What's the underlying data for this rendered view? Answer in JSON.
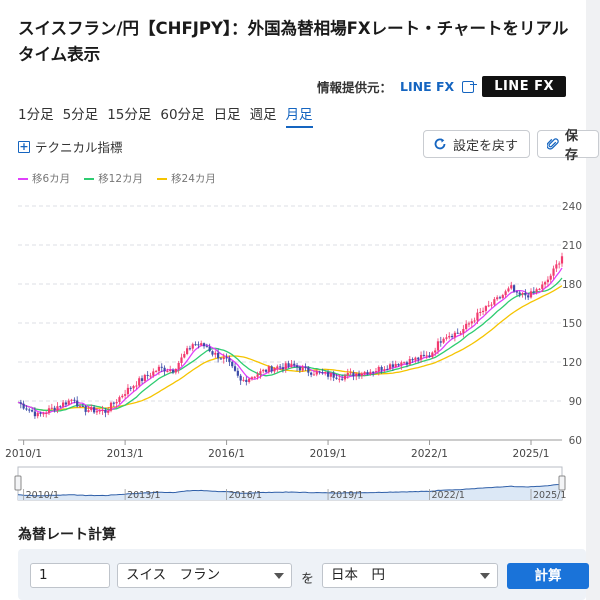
{
  "title": "スイスフラン/円【CHFJPY】：外国為替相場FXレート・チャートをリアルタイム表示",
  "provider": {
    "label": "情報提供元：",
    "link": "LINE FX",
    "logo": "LINE FX"
  },
  "periods": [
    {
      "label": "1分足",
      "active": false
    },
    {
      "label": "5分足",
      "active": false
    },
    {
      "label": "15分足",
      "active": false
    },
    {
      "label": "60分足",
      "active": false
    },
    {
      "label": "日足",
      "active": false
    },
    {
      "label": "週足",
      "active": false
    },
    {
      "label": "月足",
      "active": true
    }
  ],
  "toolbar": {
    "technical_label": "テクニカル指標",
    "reset_label": "設定を戻す",
    "save_label": "保存"
  },
  "legend": [
    {
      "name": "移6カ月",
      "color": "#e040fb"
    },
    {
      "name": "移12カ月",
      "color": "#2ecc71"
    },
    {
      "name": "移24カ月",
      "color": "#f5c400"
    }
  ],
  "chart_data": {
    "type": "candlestick",
    "x_ticks": [
      "2010/1",
      "2013/1",
      "2016/1",
      "2019/1",
      "2022/1",
      "2025/1"
    ],
    "y_ticks": [
      60,
      90,
      120,
      150,
      180,
      210,
      240
    ],
    "ylim": [
      60,
      240
    ],
    "xlim": [
      "2009/11",
      "2025/12"
    ],
    "up_color": "#f23a6e",
    "down_color": "#3b4ba8",
    "price_path": [
      [
        "2009/11",
        89
      ],
      [
        "2010/6",
        79
      ],
      [
        "2011/7",
        92
      ],
      [
        "2011/9",
        84
      ],
      [
        "2012/1",
        83
      ],
      [
        "2012/6",
        82
      ],
      [
        "2013/1",
        97
      ],
      [
        "2013/5",
        104
      ],
      [
        "2014/1",
        115
      ],
      [
        "2014/6",
        114
      ],
      [
        "2015/1",
        134
      ],
      [
        "2015/6",
        132
      ],
      [
        "2015/8",
        127
      ],
      [
        "2016/1",
        121
      ],
      [
        "2016/6",
        105
      ],
      [
        "2017/1",
        112
      ],
      [
        "2017/6",
        116
      ],
      [
        "2018/1",
        117
      ],
      [
        "2018/6",
        113
      ],
      [
        "2019/1",
        110
      ],
      [
        "2019/6",
        109
      ],
      [
        "2020/1",
        112
      ],
      [
        "2020/6",
        114
      ],
      [
        "2021/1",
        119
      ],
      [
        "2021/6",
        121
      ],
      [
        "2022/1",
        125
      ],
      [
        "2022/6",
        140
      ],
      [
        "2022/12",
        143
      ],
      [
        "2023/6",
        156
      ],
      [
        "2023/12",
        166
      ],
      [
        "2024/6",
        177
      ],
      [
        "2024/8",
        171
      ],
      [
        "2025/1",
        172
      ],
      [
        "2025/6",
        180
      ],
      [
        "2025/9",
        190
      ],
      [
        "2025/12",
        202
      ]
    ],
    "navigator_ticks": [
      "2010/1",
      "2013/1",
      "2016/1",
      "2019/1",
      "2022/1",
      "2025/1"
    ]
  },
  "calc": {
    "title": "為替レート計算",
    "amount": "1",
    "from": "スイス　フラン",
    "conj": "を",
    "to": "日本　円",
    "button": "計算"
  }
}
